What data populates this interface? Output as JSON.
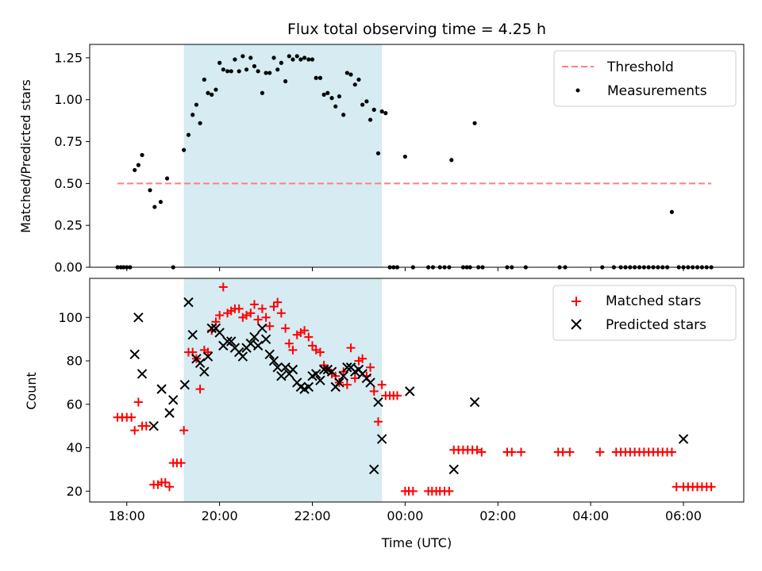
{
  "chart_data": [
    {
      "type": "scatter",
      "title": "Flux total observing time = 4.25 h",
      "xlabel": "",
      "ylabel": "Matched/Predicted stars",
      "x_unit": "hours since 00:00 UTC of first night (values >24 are next day)",
      "xlim": [
        17.2,
        31.3
      ],
      "ylim": [
        0,
        1.33
      ],
      "yticks": [
        0.0,
        0.25,
        0.5,
        0.75,
        1.0,
        1.25
      ],
      "ytick_labels": [
        "0.00",
        "0.25",
        "0.50",
        "0.75",
        "1.00",
        "1.25"
      ],
      "shaded_interval": [
        19.23,
        23.5
      ],
      "shade_color": "#add8e6",
      "legend_position": "top-right",
      "series": [
        {
          "name": "Threshold",
          "kind": "dashed-line",
          "color": "#ff7f7f",
          "x": [
            17.8,
            30.6
          ],
          "y": [
            0.5,
            0.5
          ]
        },
        {
          "name": "Measurements",
          "kind": "points",
          "color": "#000000",
          "x": [
            17.8,
            17.87,
            17.93,
            18.0,
            18.07,
            18.17,
            18.25,
            18.33,
            18.5,
            18.6,
            18.73,
            18.87,
            19.0,
            19.23,
            19.33,
            19.42,
            19.5,
            19.58,
            19.67,
            19.75,
            19.83,
            19.92,
            20.0,
            20.08,
            20.17,
            20.25,
            20.33,
            20.42,
            20.5,
            20.58,
            20.67,
            20.75,
            20.83,
            20.92,
            21.0,
            21.08,
            21.17,
            21.25,
            21.33,
            21.42,
            21.5,
            21.58,
            21.67,
            21.75,
            21.83,
            21.92,
            22.0,
            22.08,
            22.17,
            22.25,
            22.33,
            22.42,
            22.5,
            22.58,
            22.67,
            22.75,
            22.83,
            22.92,
            23.0,
            23.08,
            23.17,
            23.25,
            23.33,
            23.42,
            23.5,
            23.58,
            23.67,
            23.75,
            23.83,
            24.0,
            24.17,
            24.5,
            24.6,
            24.75,
            24.85,
            24.95,
            25.0,
            25.25,
            25.33,
            25.4,
            25.5,
            25.58,
            25.67,
            26.2,
            26.3,
            26.6,
            27.33,
            27.45,
            28.25,
            28.5,
            28.65,
            28.75,
            28.85,
            28.95,
            29.05,
            29.15,
            29.25,
            29.35,
            29.45,
            29.55,
            29.65,
            29.75,
            29.9,
            30.0,
            30.1,
            30.2,
            30.3,
            30.4,
            30.5,
            30.6
          ],
          "y": [
            0.0,
            0.0,
            0.0,
            0.0,
            0.0,
            0.58,
            0.61,
            0.67,
            0.46,
            0.36,
            0.39,
            0.53,
            0.0,
            0.7,
            0.79,
            0.91,
            0.97,
            0.86,
            1.12,
            1.04,
            1.03,
            1.06,
            1.22,
            1.18,
            1.17,
            1.17,
            1.24,
            1.17,
            1.26,
            1.18,
            1.25,
            1.2,
            1.17,
            1.04,
            1.16,
            1.16,
            1.25,
            1.18,
            1.22,
            1.11,
            1.26,
            1.24,
            1.26,
            1.24,
            1.25,
            1.24,
            1.24,
            1.13,
            1.13,
            1.03,
            1.04,
            1.01,
            0.96,
            1.02,
            0.91,
            1.16,
            1.15,
            1.09,
            1.12,
            0.97,
            0.99,
            0.88,
            0.94,
            0.68,
            0.93,
            0.92,
            0.0,
            0.0,
            0.0,
            0.66,
            0.0,
            0.0,
            0.0,
            0.0,
            0.0,
            0.0,
            0.64,
            0.0,
            0.0,
            0.0,
            0.86,
            0.0,
            0.0,
            0.0,
            0.0,
            0.0,
            0.0,
            0.0,
            0.0,
            0.0,
            0.0,
            0.0,
            0.0,
            0.0,
            0.0,
            0.0,
            0.0,
            0.0,
            0.0,
            0.0,
            0.0,
            0.33,
            0.0,
            0.0,
            0.0,
            0.0,
            0.0,
            0.0,
            0.0,
            0.0
          ]
        }
      ]
    },
    {
      "type": "scatter",
      "title": "",
      "xlabel": "Time (UTC)",
      "ylabel": "Count",
      "x_unit": "hours since 00:00 UTC of first night (values >24 are next day)",
      "xlim": [
        17.2,
        31.3
      ],
      "ylim": [
        15,
        118
      ],
      "yticks": [
        20,
        40,
        60,
        80,
        100
      ],
      "ytick_labels": [
        "20",
        "40",
        "60",
        "80",
        "100"
      ],
      "xticks": [
        18,
        20,
        22,
        24,
        26,
        28,
        30
      ],
      "xtick_labels": [
        "18:00",
        "20:00",
        "22:00",
        "00:00",
        "02:00",
        "04:00",
        "06:00"
      ],
      "shaded_interval": [
        19.23,
        23.5
      ],
      "shade_color": "#add8e6",
      "legend_position": "top-right",
      "series": [
        {
          "name": "Matched stars",
          "kind": "plus",
          "color": "#ff0000",
          "x": [
            17.8,
            17.9,
            18.0,
            18.1,
            18.17,
            18.25,
            18.33,
            18.42,
            18.58,
            18.67,
            18.75,
            18.83,
            18.92,
            19.0,
            19.08,
            19.17,
            19.23,
            19.33,
            19.42,
            19.5,
            19.58,
            19.67,
            19.75,
            19.83,
            19.92,
            20.0,
            20.08,
            20.17,
            20.25,
            20.33,
            20.42,
            20.5,
            20.58,
            20.67,
            20.75,
            20.83,
            20.92,
            21.0,
            21.08,
            21.17,
            21.25,
            21.33,
            21.42,
            21.5,
            21.58,
            21.67,
            21.75,
            21.83,
            21.92,
            22.0,
            22.08,
            22.17,
            22.25,
            22.33,
            22.42,
            22.5,
            22.58,
            22.67,
            22.75,
            22.83,
            22.92,
            23.0,
            23.08,
            23.17,
            23.25,
            23.33,
            23.42,
            23.5,
            23.58,
            23.67,
            23.75,
            23.83,
            24.0,
            24.08,
            24.17,
            24.5,
            24.58,
            24.67,
            24.75,
            24.85,
            24.95,
            25.05,
            25.15,
            25.25,
            25.35,
            25.45,
            25.55,
            25.65,
            26.2,
            26.3,
            26.5,
            27.3,
            27.4,
            27.55,
            28.2,
            28.55,
            28.65,
            28.75,
            28.85,
            28.95,
            29.05,
            29.15,
            29.25,
            29.35,
            29.45,
            29.55,
            29.65,
            29.75,
            29.85,
            30.0,
            30.1,
            30.2,
            30.3,
            30.4,
            30.5,
            30.6
          ],
          "y": [
            54,
            54,
            54,
            54,
            48,
            61,
            50,
            50,
            23,
            23,
            24,
            24,
            22,
            33,
            33,
            33,
            48,
            84,
            84,
            81,
            67,
            85,
            84,
            94,
            98,
            101,
            114,
            102,
            103,
            104,
            104,
            100,
            101,
            102,
            106,
            99,
            104,
            100,
            96,
            105,
            107,
            102,
            95,
            88,
            85,
            92,
            93,
            94,
            91,
            87,
            85,
            84,
            78,
            76,
            74,
            73,
            70,
            75,
            69,
            86,
            72,
            80,
            81,
            73,
            77,
            66,
            52,
            69,
            64,
            64,
            64,
            64,
            20,
            20,
            20,
            20,
            20,
            20,
            20,
            20,
            20,
            39,
            39,
            39,
            39,
            39,
            39,
            38,
            38,
            38,
            38,
            38,
            38,
            38,
            38,
            38,
            38,
            38,
            38,
            38,
            38,
            38,
            38,
            38,
            38,
            38,
            38,
            38,
            22,
            22,
            22,
            22,
            22,
            22,
            22,
            22
          ]
        },
        {
          "name": "Predicted stars",
          "kind": "x",
          "color": "#000000",
          "x": [
            18.17,
            18.25,
            18.33,
            18.58,
            18.75,
            18.92,
            19.0,
            19.25,
            19.33,
            19.42,
            19.5,
            19.58,
            19.67,
            19.75,
            19.83,
            19.92,
            20.0,
            20.08,
            20.17,
            20.25,
            20.33,
            20.42,
            20.5,
            20.58,
            20.67,
            20.75,
            20.83,
            20.92,
            21.0,
            21.08,
            21.17,
            21.25,
            21.33,
            21.42,
            21.5,
            21.58,
            21.67,
            21.75,
            21.83,
            21.92,
            22.0,
            22.08,
            22.17,
            22.25,
            22.33,
            22.42,
            22.5,
            22.58,
            22.67,
            22.75,
            22.83,
            22.92,
            23.0,
            23.08,
            23.17,
            23.25,
            23.33,
            23.42,
            23.5,
            24.1,
            25.05,
            25.5,
            30.0
          ],
          "y": [
            83,
            100,
            74,
            50,
            67,
            56,
            62,
            69,
            107,
            92,
            81,
            79,
            75,
            82,
            95,
            95,
            93,
            87,
            89,
            89,
            86,
            84,
            82,
            86,
            88,
            91,
            87,
            95,
            90,
            83,
            80,
            77,
            73,
            77,
            74,
            76,
            70,
            68,
            67,
            68,
            73,
            74,
            71,
            76,
            76,
            75,
            68,
            70,
            73,
            77,
            77,
            75,
            76,
            74,
            72,
            70,
            30,
            61,
            44,
            66,
            30,
            61,
            44
          ]
        }
      ]
    }
  ]
}
